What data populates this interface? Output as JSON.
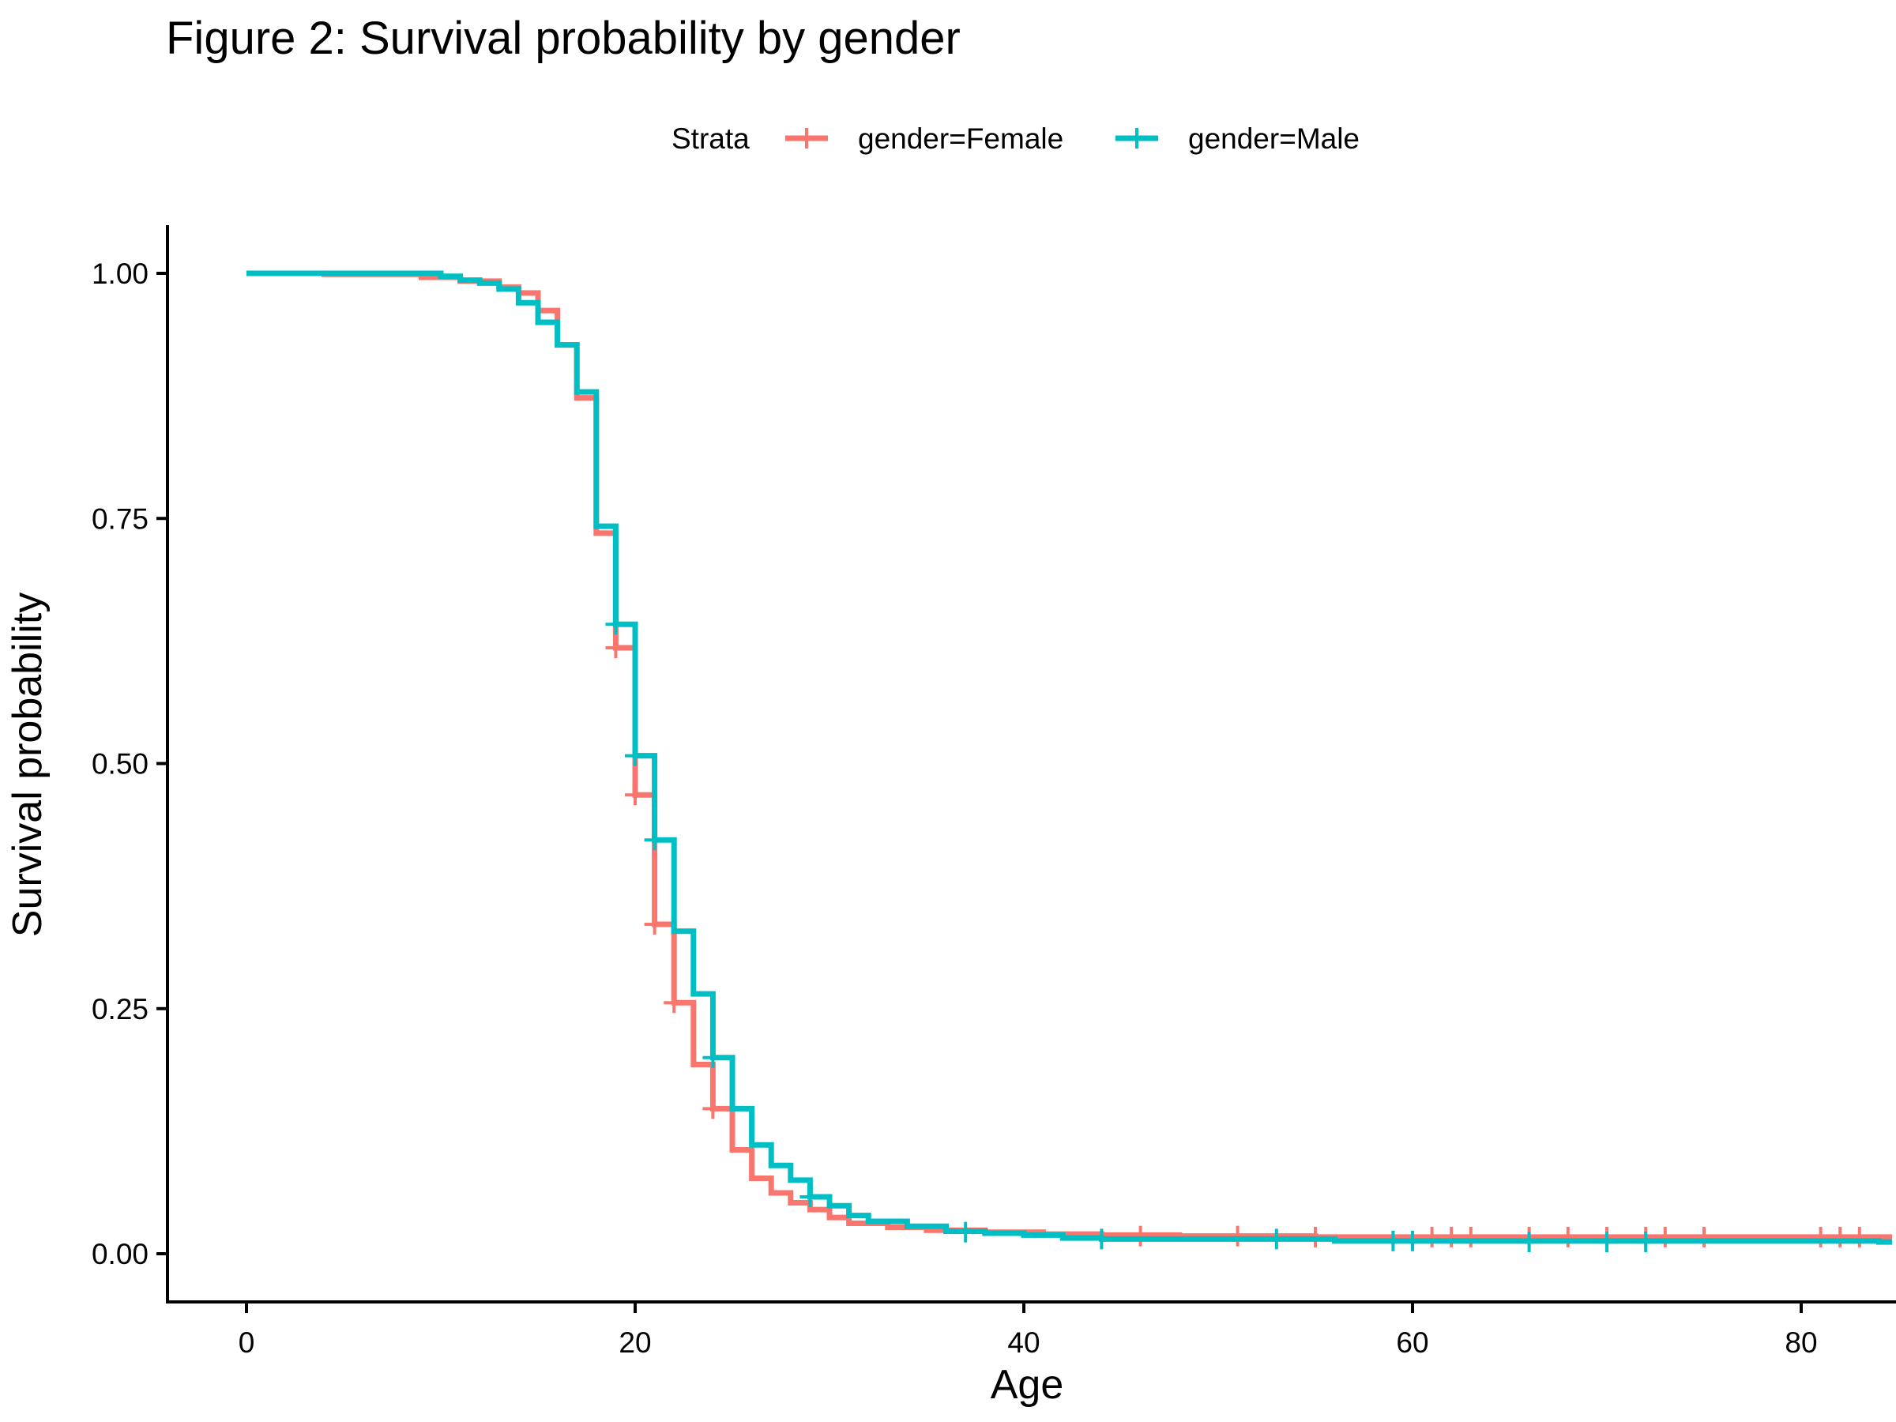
{
  "chart_data": {
    "type": "line",
    "title": "Figure 2: Survival probability by gender",
    "xlabel": "Age",
    "ylabel": "Survival probability",
    "xlim": [
      -5,
      84
    ],
    "ylim": [
      -0.05,
      1.05
    ],
    "xticks": [
      0,
      20,
      40,
      60,
      80
    ],
    "xtick_labels": [
      "0",
      "20",
      "40",
      "60",
      "80"
    ],
    "yticks": [
      0,
      0.25,
      0.5,
      0.75,
      1
    ],
    "ytick_labels": [
      "0.00",
      "0.25",
      "0.50",
      "0.75",
      "1.00"
    ],
    "grid": false,
    "legend": {
      "title": "Strata",
      "position": "top"
    },
    "series": [
      {
        "name": "gender=Female",
        "color": "#F8766D",
        "steps": [
          [
            0,
            1.0
          ],
          [
            4,
            0.999
          ],
          [
            9,
            0.996
          ],
          [
            11,
            0.992
          ],
          [
            13,
            0.986
          ],
          [
            14,
            0.98
          ],
          [
            15,
            0.962
          ],
          [
            16,
            0.927
          ],
          [
            17,
            0.873
          ],
          [
            18,
            0.735
          ],
          [
            19,
            0.618
          ],
          [
            20,
            0.468
          ],
          [
            21,
            0.336
          ],
          [
            22,
            0.256
          ],
          [
            23,
            0.193
          ],
          [
            24,
            0.148
          ],
          [
            25,
            0.106
          ],
          [
            26,
            0.077
          ],
          [
            27,
            0.062
          ],
          [
            28,
            0.052
          ],
          [
            29,
            0.045
          ],
          [
            30,
            0.037
          ],
          [
            31,
            0.031
          ],
          [
            33,
            0.027
          ],
          [
            35,
            0.024
          ],
          [
            38,
            0.022
          ],
          [
            41,
            0.02
          ],
          [
            44,
            0.019
          ],
          [
            48,
            0.018
          ],
          [
            55,
            0.017
          ],
          [
            84,
            0.017
          ]
        ],
        "censored": [
          [
            19,
            0.618
          ],
          [
            20,
            0.468
          ],
          [
            21,
            0.336
          ],
          [
            22,
            0.256
          ],
          [
            24,
            0.148
          ],
          [
            46,
            0.018
          ],
          [
            51,
            0.018
          ],
          [
            55,
            0.017
          ],
          [
            61,
            0.017
          ],
          [
            62,
            0.017
          ],
          [
            63,
            0.017
          ],
          [
            66,
            0.017
          ],
          [
            68,
            0.017
          ],
          [
            70,
            0.017
          ],
          [
            72,
            0.017
          ],
          [
            73,
            0.017
          ],
          [
            75,
            0.017
          ],
          [
            81,
            0.017
          ],
          [
            82,
            0.017
          ],
          [
            83,
            0.017
          ]
        ]
      },
      {
        "name": "gender=Male",
        "color": "#00BFC4",
        "steps": [
          [
            0,
            1.0
          ],
          [
            10,
            0.997
          ],
          [
            11,
            0.993
          ],
          [
            12,
            0.99
          ],
          [
            13,
            0.984
          ],
          [
            14,
            0.97
          ],
          [
            15,
            0.95
          ],
          [
            16,
            0.927
          ],
          [
            17,
            0.879
          ],
          [
            18,
            0.742
          ],
          [
            19,
            0.642
          ],
          [
            20,
            0.508
          ],
          [
            21,
            0.422
          ],
          [
            22,
            0.329
          ],
          [
            23,
            0.265
          ],
          [
            24,
            0.2
          ],
          [
            25,
            0.148
          ],
          [
            26,
            0.111
          ],
          [
            27,
            0.09
          ],
          [
            28,
            0.075
          ],
          [
            29,
            0.058
          ],
          [
            30,
            0.049
          ],
          [
            31,
            0.039
          ],
          [
            32,
            0.033
          ],
          [
            34,
            0.028
          ],
          [
            36,
            0.023
          ],
          [
            38,
            0.021
          ],
          [
            40,
            0.019
          ],
          [
            42,
            0.016
          ],
          [
            44,
            0.015
          ],
          [
            56,
            0.013
          ],
          [
            84,
            0.012
          ]
        ],
        "censored": [
          [
            19,
            0.642
          ],
          [
            20,
            0.508
          ],
          [
            21,
            0.422
          ],
          [
            24,
            0.2
          ],
          [
            29,
            0.058
          ],
          [
            37,
            0.022
          ],
          [
            44,
            0.015
          ],
          [
            53,
            0.015
          ],
          [
            59,
            0.013
          ],
          [
            60,
            0.013
          ],
          [
            66,
            0.012
          ],
          [
            70,
            0.012
          ],
          [
            72,
            0.012
          ]
        ]
      }
    ]
  }
}
